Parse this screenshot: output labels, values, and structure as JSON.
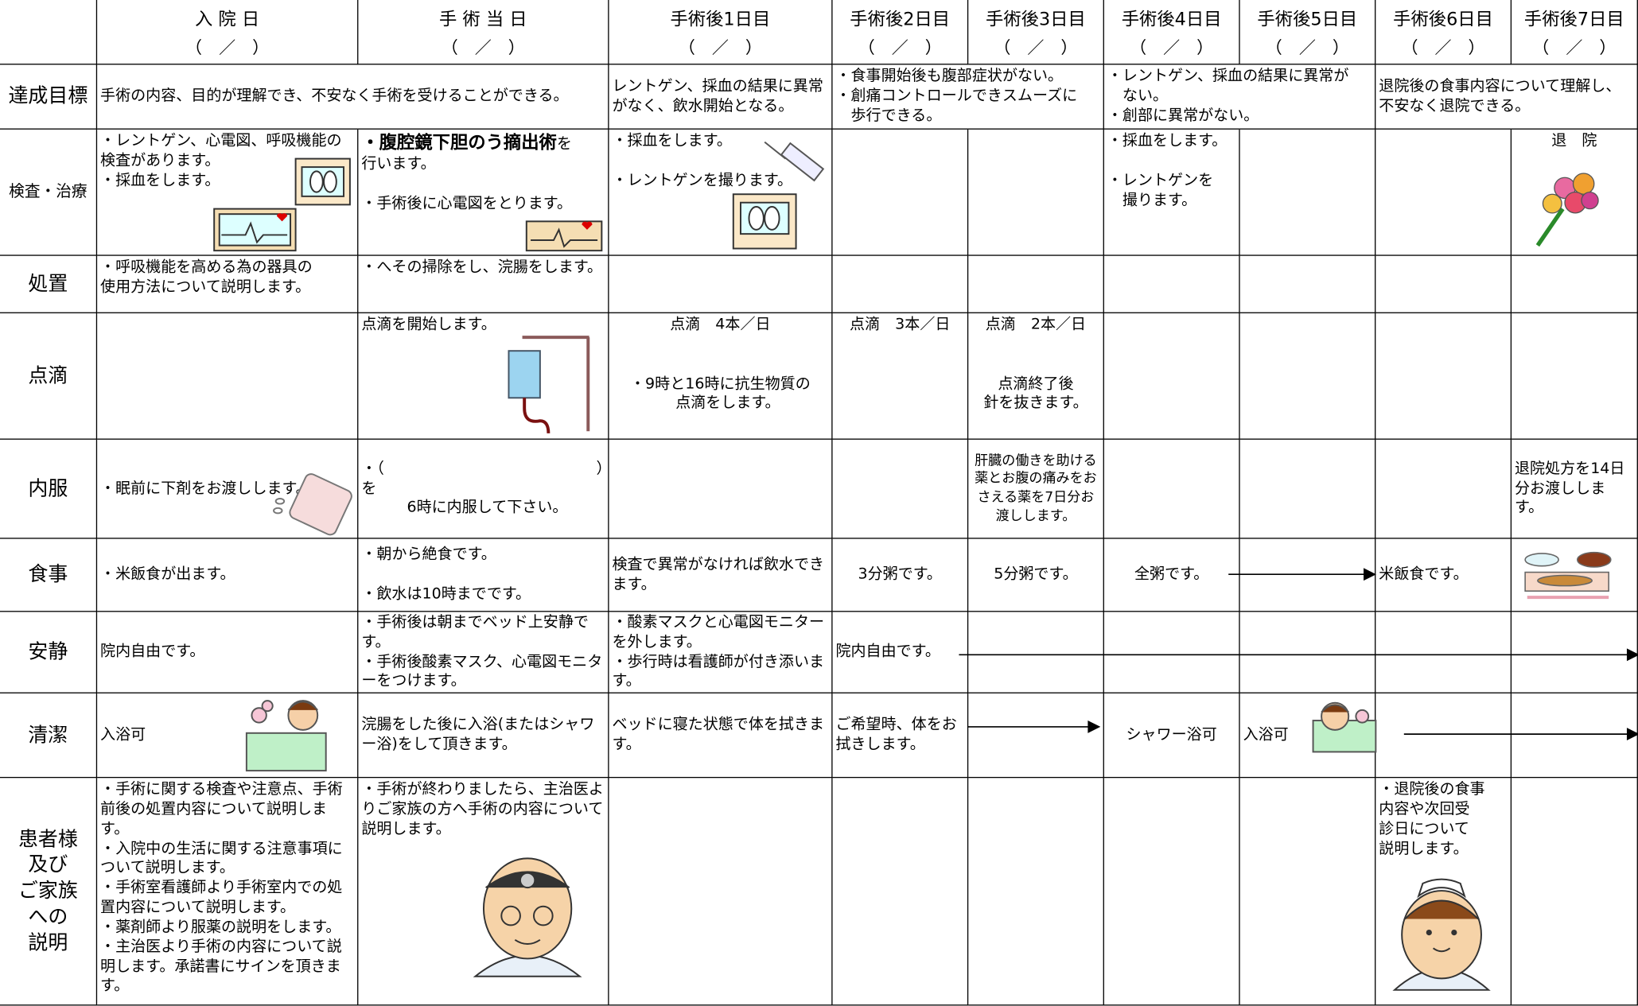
{
  "header": {
    "days": [
      "入 院 日",
      "手 術 当 日",
      "手術後1日目",
      "手術後2日目",
      "手術後3日目",
      "手術後4日目",
      "手術後5日目",
      "手術後6日目",
      "手術後7日目"
    ],
    "dates": [
      "（　／　）",
      "（　／　）",
      "（　／　）",
      "（　／　）",
      "（　／　）",
      "（　／　）",
      "（　／　）",
      "（　／　）",
      "（　／　）"
    ]
  },
  "rows": [
    {
      "label": "達成目標",
      "cells": [
        "手術の内容、目的が理解でき、不安なく手術を受けることができる。",
        "レントゲン、採血の結果に異常がなく、飲水開始となる。",
        "・食事開始後も腹部症状がない。\n・創痛コントロールできスムーズに\n　歩行できる。",
        "・レントゲン、採血の結果に異常が\n　ない。\n・創部に異常がない。",
        "退院後の食事内容について理解し、\n不安なく退院できる。"
      ]
    },
    {
      "label": "検査・治療",
      "cells": [
        "・レントゲン、心電図、呼吸機能の\n検査があります。\n・採血をします。",
        {
          "bold": "・腹腔鏡下胆のう摘出術",
          "text": "を\n行います。\n\n・手術後に心電図をとります。"
        },
        "・採血をします。\n\n・レントゲンを撮ります。",
        null,
        null,
        "・採血をします。\n\n・レントゲンを\n　撮ります。",
        null,
        null,
        "退　院"
      ]
    },
    {
      "label": "処置",
      "cells": [
        "・呼吸機能を高める為の器具の\n使用方法について説明します。",
        "・へその掃除をし、浣腸をします。",
        null,
        null,
        null,
        null,
        null,
        null,
        null
      ]
    },
    {
      "label": "点滴",
      "cells": [
        null,
        "点滴を開始します。",
        "点滴　4本／日\n\n\n・9時と16時に抗生物質の\n　点滴をします。",
        "点滴　3本／日",
        "点滴　2本／日\n\n\n点滴終了後\n針を抜きます。",
        null,
        null,
        null,
        null
      ]
    },
    {
      "label": "内服",
      "cells": [
        "・眠前に下剤をお渡しします。",
        "・（　　　　　　　　　　　　　　）を\n　　　6時に内服して下さい。",
        null,
        null,
        "肝臓の働きを助ける薬とお腹の痛みをおさえる薬を7日分お渡しします。",
        null,
        null,
        null,
        "退院処方を14日分お渡しします。"
      ]
    },
    {
      "label": "食事",
      "cells": [
        "・米飯食が出ます。",
        "・朝から絶食です。\n\n・飲水は10時までです。",
        "検査で異常がなければ飲水できます。",
        "3分粥です。",
        "5分粥です。",
        "全粥です。",
        null,
        "米飯食です。",
        null
      ]
    },
    {
      "label": "安静",
      "cells": [
        "院内自由です。",
        "・手術後は朝までベッド上安静です。\n・手術後酸素マスク、心電図モニターをつけます。",
        "・酸素マスクと心電図モニターを外します。\n・歩行時は看護師が付き添います。",
        "院内自由です。",
        null,
        null,
        null,
        null,
        null
      ]
    },
    {
      "label": "清潔",
      "cells": [
        "入浴可",
        "浣腸をした後に入浴(またはシャワー浴)をして頂きます。",
        "ベッドに寝た状態で体を拭きま\nす。",
        "ご希望時、体をお拭きします。",
        null,
        "シャワー浴可",
        "入浴可",
        null,
        null
      ]
    },
    {
      "label": "患者様\n及び\nご家族\nへの\n説明",
      "cells": [
        "・手術に関する検査や注意点、手術前後の処置内容について説明します。\n・入院中の生活に関する注意事項について説明します。\n・手術室看護師より手術室内での処置内容について説明します。\n・薬剤師より服薬の説明をします。\n・主治医より手術の内容について説明します。承諾書にサインを頂きます。",
        "・手術が終わりましたら、主治医よりご家族の方へ手術の内容について説明します。",
        null,
        null,
        null,
        null,
        null,
        "・退院後の食事\n内容や次回受\n診日について\n説明します。",
        null
      ]
    }
  ]
}
